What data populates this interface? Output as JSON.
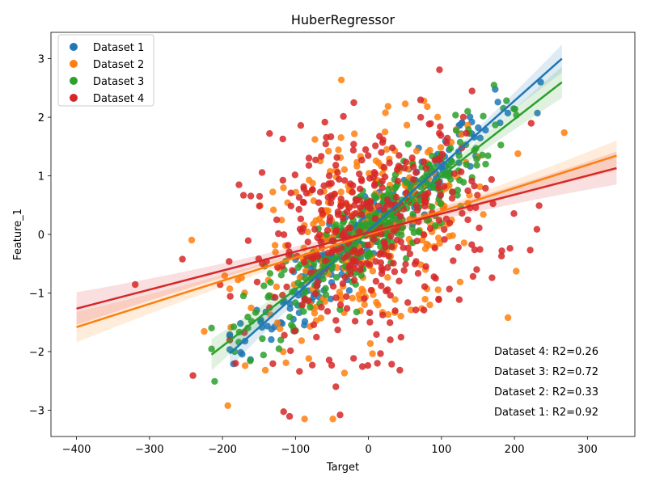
{
  "chart_data": {
    "type": "scatter",
    "title": "HuberRegressor",
    "xlabel": "Target",
    "ylabel": "Feature_1",
    "xlim": [
      -435,
      365
    ],
    "ylim": [
      -3.45,
      3.45
    ],
    "xticks": [
      -400,
      -300,
      -200,
      -100,
      0,
      100,
      200,
      300
    ],
    "yticks": [
      -3,
      -2,
      -1,
      0,
      1,
      2,
      3
    ],
    "xtick_labels": [
      "−400",
      "−300",
      "−200",
      "−100",
      "0",
      "100",
      "200",
      "300"
    ],
    "ytick_labels": [
      "−3",
      "−2",
      "−1",
      "0",
      "1",
      "2",
      "3"
    ],
    "grid": false,
    "legend_position": "top-left",
    "series": [
      {
        "name": "Dataset 1",
        "color": "#1f77b4",
        "n_points": 250,
        "x_range": [
          -190,
          265
        ],
        "fit": {
          "slope": 0.01106,
          "intercept": 0.069
        },
        "r2_label": "Dataset 1: R2=0.92"
      },
      {
        "name": "Dataset 2",
        "color": "#ff7f0e",
        "n_points": 300,
        "x_range": [
          -400,
          340
        ],
        "fit": {
          "slope": 0.003955,
          "intercept": 0.0
        },
        "r2_label": "Dataset 2: R2=0.33"
      },
      {
        "name": "Dataset 3",
        "color": "#2ca02c",
        "n_points": 300,
        "x_range": [
          -215,
          265
        ],
        "fit": {
          "slope": 0.00969,
          "intercept": 0.03
        },
        "r2_label": "Dataset 3: R2=0.72"
      },
      {
        "name": "Dataset 4",
        "color": "#d62728",
        "n_points": 400,
        "x_range": [
          -400,
          340
        ],
        "fit": {
          "slope": 0.003243,
          "intercept": 0.03
        },
        "r2_label": "Dataset 4: R2=0.26"
      }
    ],
    "annotations": [
      "Dataset 4: R2=0.26",
      "Dataset 3: R2=0.72",
      "Dataset 2: R2=0.33",
      "Dataset 1: R2=0.92"
    ]
  }
}
